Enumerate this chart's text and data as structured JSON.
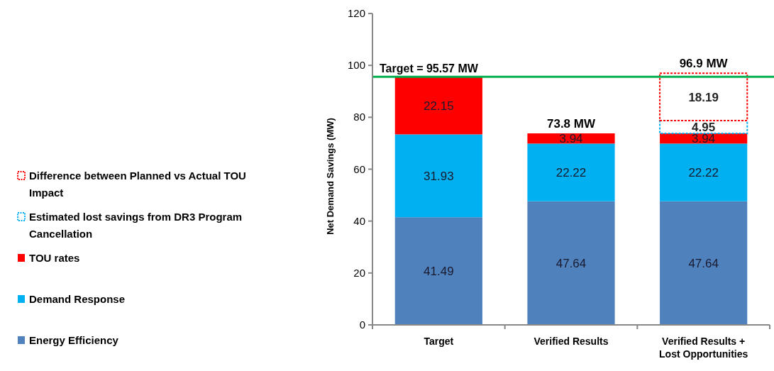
{
  "chart_data": {
    "type": "bar",
    "stacked": true,
    "ylabel": "Net Demand Savings (MW)",
    "categories": [
      "Target",
      "Verified Results",
      "Verified Results + Lost Opportunities"
    ],
    "series": [
      {
        "name": "Energy Efficiency",
        "color": "#4f81bd",
        "values": [
          41.49,
          47.64,
          47.64
        ]
      },
      {
        "name": "Demand Response",
        "color": "#00b0f0",
        "values": [
          31.93,
          22.22,
          22.22
        ]
      },
      {
        "name": "TOU rates",
        "color": "#ff0000",
        "values": [
          22.15,
          3.94,
          3.94
        ]
      },
      {
        "name": "Estimated lost savings from DR3 Program Cancellation",
        "color": "#00b0f0",
        "line_style": "dotted",
        "values": [
          null,
          null,
          4.95
        ]
      },
      {
        "name": "Difference between Planned vs Actual TOU Impact",
        "color": "#ff0000",
        "line_style": "dotted",
        "values": [
          null,
          null,
          18.19
        ]
      }
    ],
    "ylim": [
      0,
      120
    ],
    "yticks": [
      0,
      20,
      40,
      60,
      80,
      100,
      120
    ],
    "grid": false,
    "legend": "left",
    "data_labels": true,
    "totals": [
      null,
      "73.8 MW",
      "96.9 MW"
    ],
    "ref_lines": [
      {
        "axis": "y",
        "value": 95.57,
        "label": "Target = 95.57 MW",
        "color": "#00b050"
      }
    ]
  }
}
